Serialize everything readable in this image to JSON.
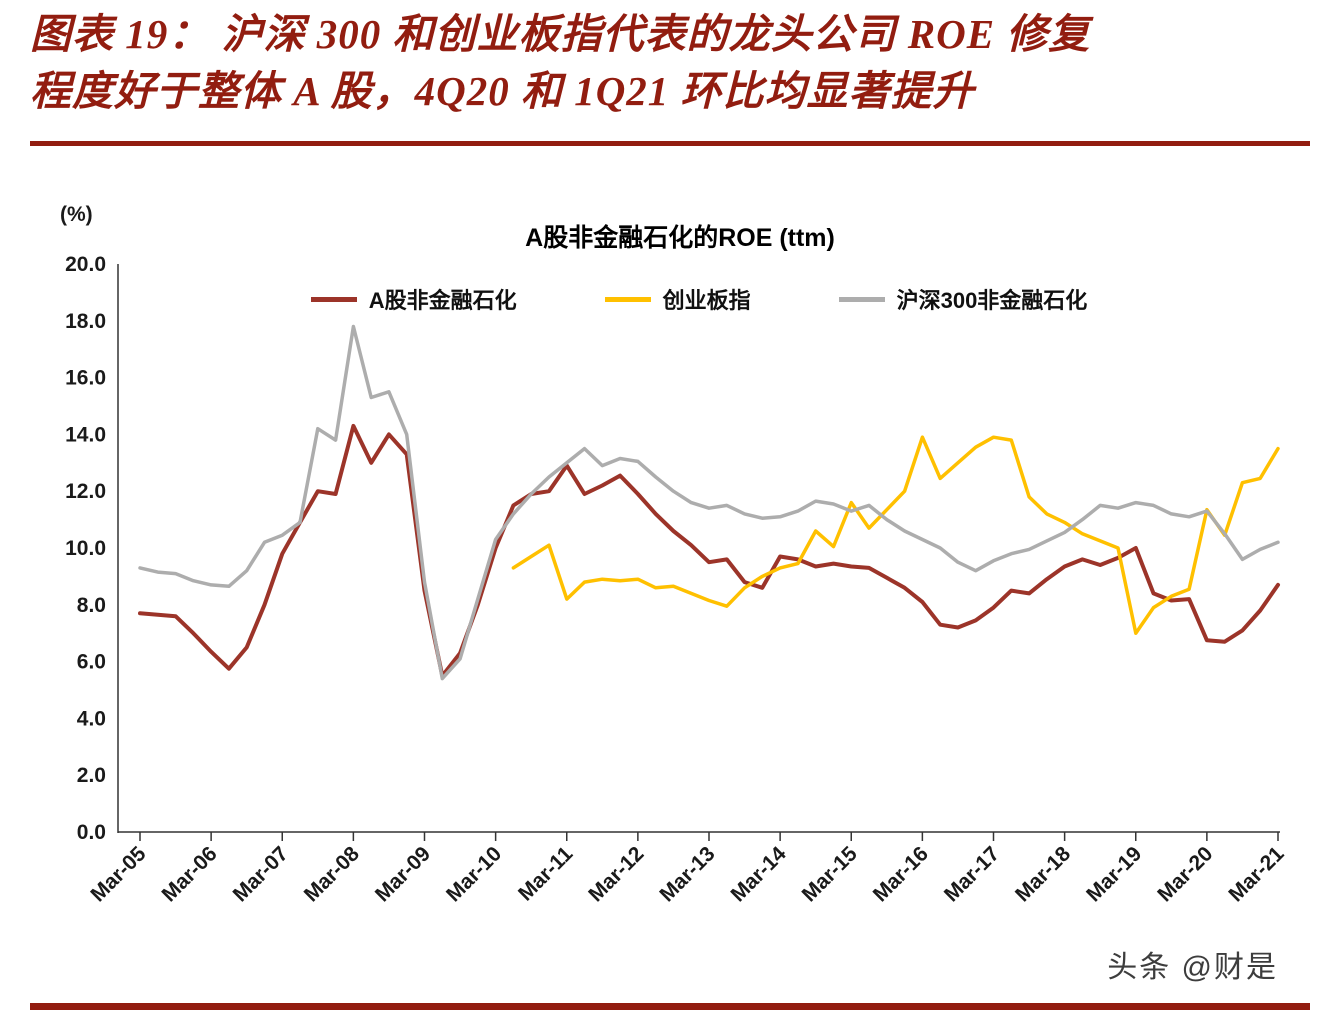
{
  "page": {
    "title_lines": [
      "图表 19：  沪深 300 和创业板指代表的龙头公司 ROE 修复",
      "程度好于整体 A 股，4Q20 和 1Q21 环比均显著提升"
    ],
    "accent_color": "#921D10",
    "watermark": "头条 @财是"
  },
  "chart_data": {
    "type": "line",
    "title": "A股非金融石化的ROE (ttm)",
    "unit_label": "(%)",
    "xlabel": "",
    "ylabel": "(%)",
    "ylim": [
      0,
      20
    ],
    "ytick_step": 2,
    "ytick_labels": [
      "0.0",
      "2.0",
      "4.0",
      "6.0",
      "8.0",
      "10.0",
      "12.0",
      "14.0",
      "16.0",
      "18.0",
      "20.0"
    ],
    "x_tick_labels": [
      "Mar-05",
      "Mar-06",
      "Mar-07",
      "Mar-08",
      "Mar-09",
      "Mar-10",
      "Mar-11",
      "Mar-12",
      "Mar-13",
      "Mar-14",
      "Mar-15",
      "Mar-16",
      "Mar-17",
      "Mar-18",
      "Mar-19",
      "Mar-20",
      "Mar-21"
    ],
    "quarters_per_tick": 4,
    "n_points": 65,
    "grid": false,
    "legend_position": "top",
    "series": [
      {
        "key": "a-share-nonfin",
        "name": "A股非金融石化",
        "color": "#9C3429",
        "width": 4,
        "start_index": 0,
        "values": [
          7.7,
          7.65,
          7.6,
          7.0,
          6.35,
          5.75,
          6.5,
          8.0,
          9.8,
          10.9,
          12.0,
          11.9,
          14.3,
          13.0,
          14.0,
          13.3,
          8.5,
          5.5,
          6.3,
          8.0,
          10.0,
          11.5,
          11.9,
          12.0,
          12.9,
          11.9,
          12.2,
          12.55,
          11.9,
          11.2,
          10.6,
          10.1,
          9.5,
          9.6,
          8.8,
          8.6,
          9.7,
          9.6,
          9.35,
          9.45,
          9.35,
          9.3,
          8.95,
          8.6,
          8.1,
          7.3,
          7.2,
          7.45,
          7.9,
          8.5,
          8.4,
          8.9,
          9.35,
          9.6,
          9.4,
          9.65,
          10.0,
          8.4,
          8.15,
          8.2,
          6.75,
          6.7,
          7.1,
          7.8,
          8.7
        ]
      },
      {
        "key": "chinext",
        "name": "创业板指",
        "color": "#FFC000",
        "width": 3.5,
        "start_index": 21,
        "values": [
          9.3,
          9.7,
          10.1,
          8.2,
          8.8,
          8.9,
          8.85,
          8.9,
          8.6,
          8.65,
          8.4,
          8.15,
          7.95,
          8.6,
          9.0,
          9.3,
          9.45,
          10.6,
          10.05,
          11.6,
          10.7,
          11.35,
          12.0,
          13.9,
          12.45,
          13.0,
          13.55,
          13.9,
          13.8,
          11.8,
          11.2,
          10.9,
          10.5,
          10.25,
          10.0,
          7.0,
          7.9,
          8.3,
          8.55,
          11.35,
          10.45,
          12.3,
          12.45,
          13.5
        ]
      },
      {
        "key": "csi300-nonfin",
        "name": "沪深300非金融石化",
        "color": "#ADADAD",
        "width": 3.5,
        "start_index": 0,
        "values": [
          9.3,
          9.15,
          9.1,
          8.85,
          8.7,
          8.65,
          9.2,
          10.2,
          10.45,
          10.9,
          14.2,
          13.8,
          17.8,
          15.3,
          15.5,
          14.0,
          8.8,
          5.4,
          6.1,
          8.2,
          10.3,
          11.2,
          11.9,
          12.5,
          13.0,
          13.5,
          12.9,
          13.15,
          13.05,
          12.5,
          12.0,
          11.6,
          11.4,
          11.5,
          11.2,
          11.05,
          11.1,
          11.3,
          11.65,
          11.55,
          11.3,
          11.5,
          11.0,
          10.6,
          10.3,
          10.0,
          9.5,
          9.2,
          9.55,
          9.8,
          9.95,
          10.25,
          10.55,
          11.0,
          11.5,
          11.4,
          11.6,
          11.5,
          11.2,
          11.1,
          11.3,
          10.5,
          9.6,
          9.95,
          10.2
        ]
      }
    ]
  }
}
